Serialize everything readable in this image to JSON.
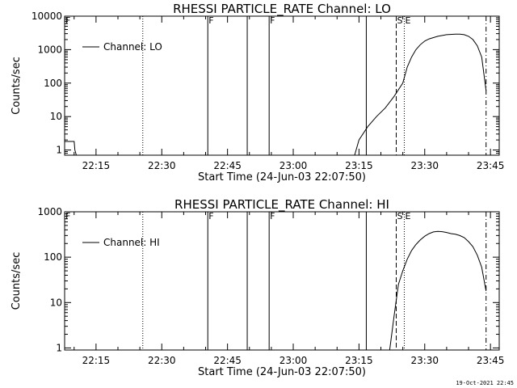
{
  "footer_date": "19-Oct-2021 22:45",
  "chart_data": [
    {
      "type": "line",
      "title": "RHESSI PARTICLE_RATE Channel: LO",
      "xlabel": "Start Time (24-Jun-03 22:07:50)",
      "ylabel": "Counts/sec",
      "yscale": "log",
      "xlim": [
        "22:07:50",
        "23:47:00"
      ],
      "ylim": [
        0.7,
        10000
      ],
      "x_ticks": [
        "22:15",
        "22:30",
        "22:45",
        "23:00",
        "23:15",
        "23:30",
        "23:45"
      ],
      "y_ticks": [
        "1",
        "10",
        "100",
        "1000",
        "10000"
      ],
      "legend": {
        "label": "Channel: LO",
        "placement": "top-left"
      },
      "series": [
        {
          "name": "Channel: LO",
          "x": [
            "22:07:50",
            "22:10:00",
            "22:10:10",
            "22:10:30",
            "23:14:00",
            "23:15:00",
            "23:17:00",
            "23:19:00",
            "23:21:00",
            "23:23:00",
            "23:25:00",
            "23:26:00",
            "23:27:00",
            "23:28:00",
            "23:29:00",
            "23:30:00",
            "23:31:00",
            "23:33:00",
            "23:35:00",
            "23:37:00",
            "23:38:00",
            "23:39:00",
            "23:40:00",
            "23:41:00",
            "23:42:00",
            "23:43:00",
            "23:44:00"
          ],
          "values": [
            1.8,
            1.8,
            1.0,
            0.7,
            0.7,
            2,
            5,
            10,
            18,
            40,
            100,
            300,
            600,
            1000,
            1400,
            1800,
            2100,
            2500,
            2800,
            2900,
            2900,
            2800,
            2500,
            2000,
            1300,
            600,
            60
          ]
        }
      ],
      "flag_markers": [
        {
          "time": "22:07:50",
          "label": "F"
        },
        {
          "time": "22:40:30",
          "label": "F"
        },
        {
          "time": "22:54:30",
          "label": "F"
        }
      ],
      "event_markers": [
        {
          "time": "22:25:40",
          "style": "dotted"
        },
        {
          "time": "22:40:30",
          "style": "solid"
        },
        {
          "time": "22:49:30",
          "style": "solid"
        },
        {
          "time": "22:54:30",
          "style": "solid"
        },
        {
          "time": "23:16:40",
          "style": "solid"
        },
        {
          "time": "23:23:30",
          "style": "dashed",
          "label": "S"
        },
        {
          "time": "23:25:20",
          "style": "dotted",
          "label": "E"
        },
        {
          "time": "23:44:00",
          "style": "dash-dot"
        }
      ]
    },
    {
      "type": "line",
      "title": "RHESSI PARTICLE_RATE Channel: HI",
      "xlabel": "Start Time (24-Jun-03 22:07:50)",
      "ylabel": "Counts/sec",
      "yscale": "log",
      "xlim": [
        "22:07:50",
        "23:47:00"
      ],
      "ylim": [
        0.9,
        1000
      ],
      "x_ticks": [
        "22:15",
        "22:30",
        "22:45",
        "23:00",
        "23:15",
        "23:30",
        "23:45"
      ],
      "y_ticks": [
        "1",
        "10",
        "100",
        "1000"
      ],
      "legend": {
        "label": "Channel: HI",
        "placement": "top-left"
      },
      "series": [
        {
          "name": "Channel: HI",
          "x": [
            "23:22:00",
            "23:23:00",
            "23:24:00",
            "23:25:00",
            "23:26:00",
            "23:27:00",
            "23:28:00",
            "23:29:00",
            "23:30:00",
            "23:31:00",
            "23:32:00",
            "23:33:00",
            "23:34:00",
            "23:35:00",
            "23:36:00",
            "23:37:00",
            "23:38:00",
            "23:39:00",
            "23:40:00",
            "23:41:00",
            "23:42:00",
            "23:43:00",
            "23:44:00"
          ],
          "values": [
            0.9,
            5,
            25,
            50,
            90,
            140,
            190,
            240,
            290,
            330,
            360,
            370,
            365,
            350,
            330,
            320,
            300,
            270,
            220,
            170,
            110,
            60,
            18
          ]
        }
      ],
      "flag_markers": [
        {
          "time": "22:07:50",
          "label": "F"
        },
        {
          "time": "22:40:30",
          "label": "F"
        },
        {
          "time": "22:54:30",
          "label": "F"
        }
      ],
      "event_markers": [
        {
          "time": "22:25:40",
          "style": "dotted"
        },
        {
          "time": "22:40:30",
          "style": "solid"
        },
        {
          "time": "22:49:30",
          "style": "solid"
        },
        {
          "time": "22:54:30",
          "style": "solid"
        },
        {
          "time": "23:16:40",
          "style": "solid"
        },
        {
          "time": "23:23:30",
          "style": "dashed",
          "label": "S"
        },
        {
          "time": "23:25:20",
          "style": "dotted",
          "label": "E"
        },
        {
          "time": "23:44:00",
          "style": "dash-dot"
        }
      ]
    }
  ]
}
